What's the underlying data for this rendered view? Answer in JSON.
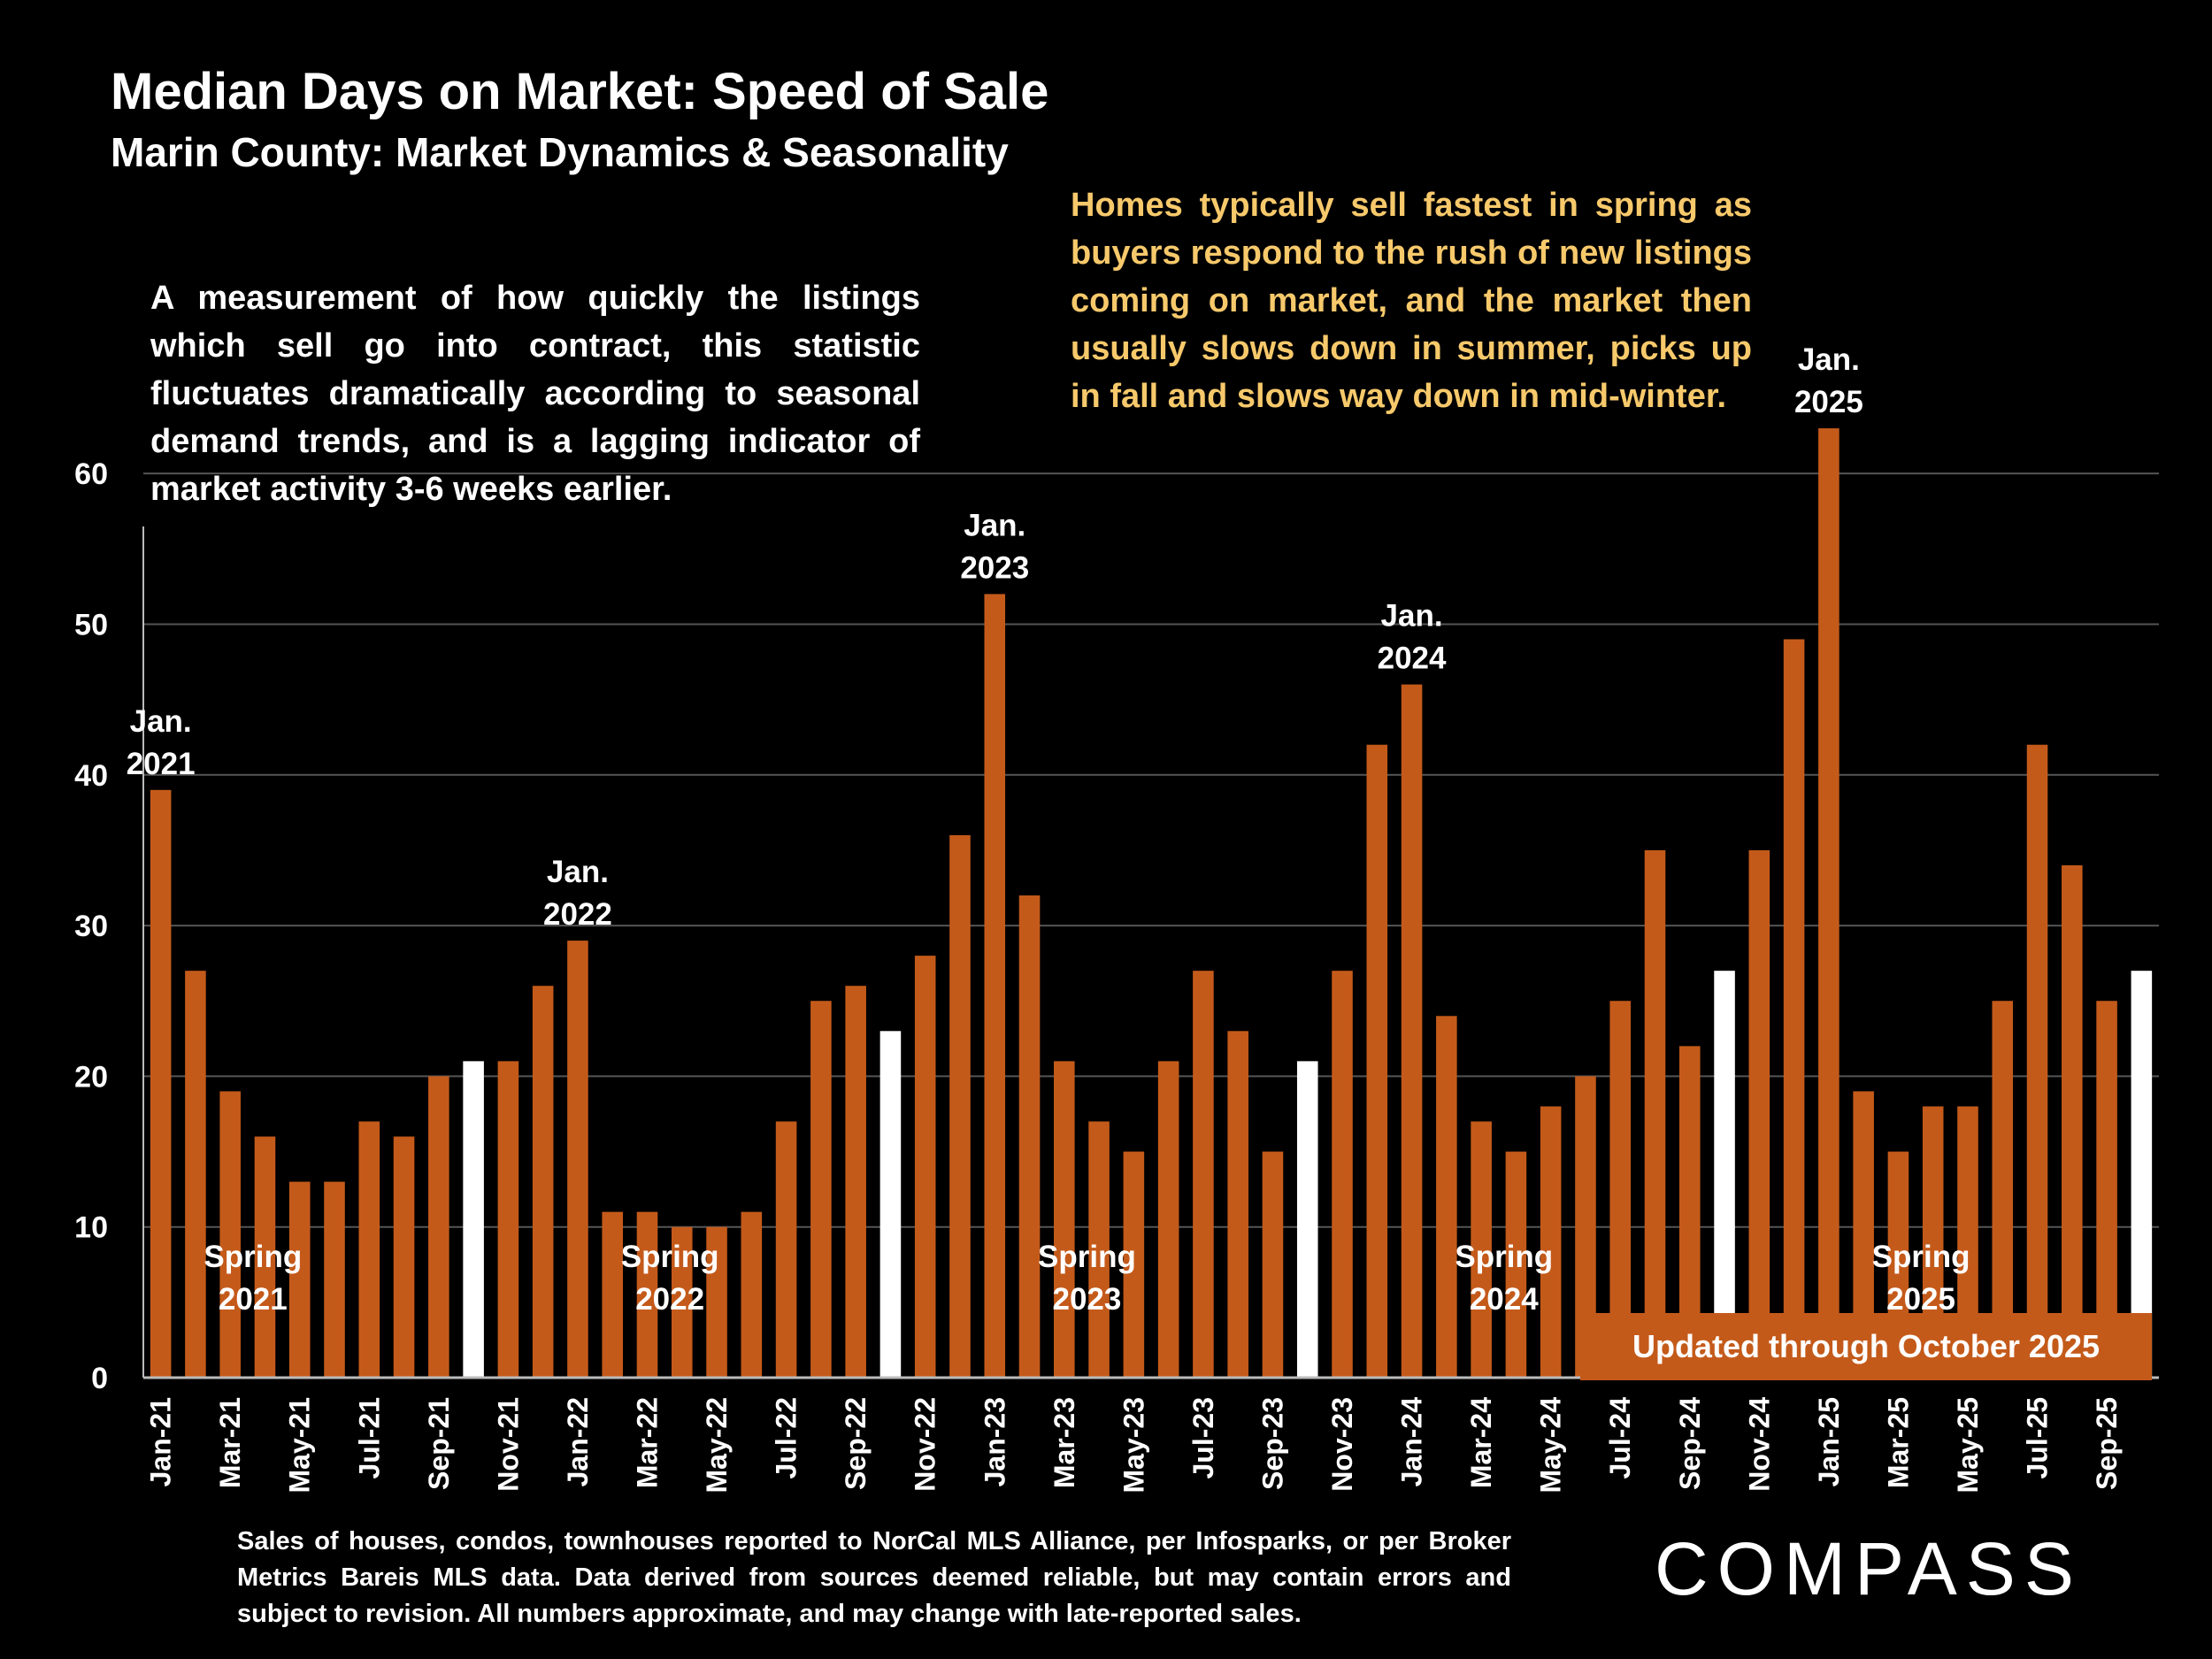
{
  "page": {
    "title": "Median Days on Market:  Speed of Sale",
    "subtitle": "Marin County: Market Dynamics & Seasonality",
    "note_left": "A measurement of how quickly the listings which sell go into contract, this statistic fluctuates dramatically according to seasonal demand trends, and is a lagging indicator of market activity 3-6 weeks earlier.",
    "note_right": "Homes typically sell fastest in spring as buyers respond to the rush of new listings coming on market, and the market then usually slows down in summer, picks up in fall and slows way down in mid-winter.",
    "updated_banner": "Updated through October 2025",
    "footnote": "Sales of houses, condos, townhouses reported to NorCal MLS Alliance, per Infosparks, or per Broker Metrics Bareis MLS data. Data derived from sources deemed reliable, but may contain errors and subject to revision. All numbers approximate, and may change with late-reported sales.",
    "logo": "COMPASS"
  },
  "colors": {
    "bar": "#c45a1a",
    "highlight": "#ffffff",
    "note_right": "#f7c96b",
    "background": "#000000"
  },
  "chart_data": {
    "type": "bar",
    "title": "Median Days on Market:  Speed of Sale",
    "xlabel": "",
    "ylabel": "",
    "ylim": [
      0,
      65
    ],
    "yticks": [
      0,
      10,
      20,
      30,
      40,
      50,
      60
    ],
    "grid": true,
    "categories": [
      "Jan-21",
      "Feb-21",
      "Mar-21",
      "Apr-21",
      "May-21",
      "Jun-21",
      "Jul-21",
      "Aug-21",
      "Sep-21",
      "Oct-21",
      "Nov-21",
      "Dec-21",
      "Jan-22",
      "Feb-22",
      "Mar-22",
      "Apr-22",
      "May-22",
      "Jun-22",
      "Jul-22",
      "Aug-22",
      "Sep-22",
      "Oct-22",
      "Nov-22",
      "Dec-22",
      "Jan-23",
      "Feb-23",
      "Mar-23",
      "Apr-23",
      "May-23",
      "Jun-23",
      "Jul-23",
      "Aug-23",
      "Sep-23",
      "Oct-23",
      "Nov-23",
      "Dec-23",
      "Jan-24",
      "Feb-24",
      "Mar-24",
      "Apr-24",
      "May-24",
      "Jun-24",
      "Jul-24",
      "Aug-24",
      "Sep-24",
      "Oct-24",
      "Nov-24",
      "Dec-24",
      "Jan-25",
      "Feb-25",
      "Mar-25",
      "Apr-25",
      "May-25",
      "Jun-25",
      "Jul-25",
      "Aug-25",
      "Sep-25",
      "Oct-25"
    ],
    "x_tick_labels": [
      "Jan-21",
      "",
      "Mar-21",
      "",
      "May-21",
      "",
      "Jul-21",
      "",
      "Sep-21",
      "",
      "Nov-21",
      "",
      "Jan-22",
      "",
      "Mar-22",
      "",
      "May-22",
      "",
      "Jul-22",
      "",
      "Sep-22",
      "",
      "Nov-22",
      "",
      "Jan-23",
      "",
      "Mar-23",
      "",
      "May-23",
      "",
      "Jul-23",
      "",
      "Sep-23",
      "",
      "Nov-23",
      "",
      "Jan-24",
      "",
      "Mar-24",
      "",
      "May-24",
      "",
      "Jul-24",
      "",
      "Sep-24",
      "",
      "Nov-24",
      "",
      "Jan-25",
      "",
      "Mar-25",
      "",
      "May-25",
      "",
      "Jul-25",
      "",
      "Sep-25",
      ""
    ],
    "values": [
      39,
      27,
      19,
      16,
      13,
      13,
      17,
      16,
      20,
      21,
      21,
      26,
      29,
      11,
      11,
      10,
      10,
      11,
      17,
      25,
      26,
      23,
      28,
      36,
      52,
      32,
      21,
      17,
      15,
      21,
      27,
      23,
      15,
      21,
      27,
      42,
      46,
      24,
      17,
      15,
      18,
      20,
      25,
      35,
      22,
      27,
      35,
      49,
      63,
      19,
      15,
      18,
      18,
      25,
      42,
      34,
      25,
      27
    ],
    "highlighted": [
      "Oct-21",
      "Oct-22",
      "Oct-23",
      "Oct-24",
      "Oct-25"
    ],
    "annotations": [
      {
        "lines": [
          "Jan.",
          "2021"
        ],
        "category": "Jan-21",
        "anchor": "top"
      },
      {
        "lines": [
          "Jan.",
          "2022"
        ],
        "category": "Jan-22",
        "anchor": "top"
      },
      {
        "lines": [
          "Jan.",
          "2023"
        ],
        "category": "Jan-23",
        "anchor": "top"
      },
      {
        "lines": [
          "Jan.",
          "2024"
        ],
        "category": "Jan-24",
        "anchor": "top"
      },
      {
        "lines": [
          "Jan.",
          "2025"
        ],
        "category": "Jan-25",
        "anchor": "top"
      },
      {
        "lines": [
          "Spring",
          "2021"
        ],
        "category": "Apr-21",
        "anchor": "inside"
      },
      {
        "lines": [
          "Spring",
          "2022"
        ],
        "category": "Apr-22",
        "anchor": "inside"
      },
      {
        "lines": [
          "Spring",
          "2023"
        ],
        "category": "Apr-23",
        "anchor": "inside"
      },
      {
        "lines": [
          "Spring",
          "2024"
        ],
        "category": "Apr-24",
        "anchor": "inside"
      },
      {
        "lines": [
          "Spring",
          "2025"
        ],
        "category": "Apr-25",
        "anchor": "inside"
      }
    ]
  }
}
